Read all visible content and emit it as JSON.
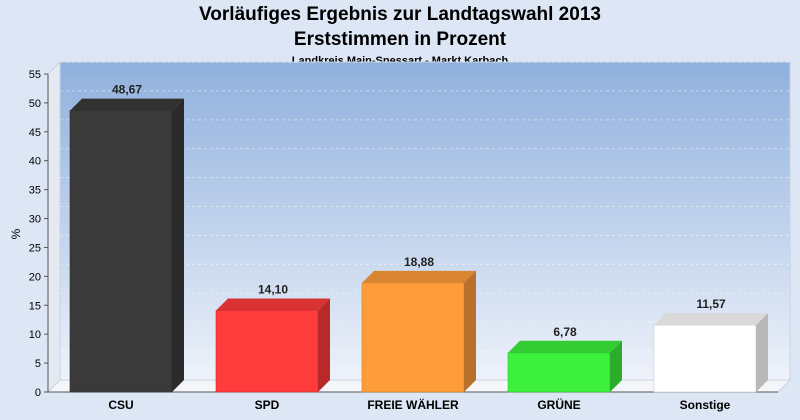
{
  "header": {
    "title": "Vorläufiges Ergebnis zur Landtagswahl 2013",
    "title2": "Erststimmen in Prozent",
    "subtitle": "Landkreis Main-Spessart - Markt Karbach"
  },
  "chart_data": {
    "type": "bar",
    "title": "Vorläufiges Ergebnis zur Landtagswahl 2013",
    "subtitle": "Erststimmen in Prozent",
    "ylabel": "%",
    "ylim": [
      0,
      55
    ],
    "yticks": [
      0,
      5,
      10,
      15,
      20,
      25,
      30,
      35,
      40,
      45,
      50,
      55
    ],
    "grid": true,
    "categories": [
      "CSU",
      "SPD",
      "FREIE WÄHLER",
      "GRÜNE",
      "Sonstige"
    ],
    "values": [
      48.67,
      14.1,
      18.88,
      6.78,
      11.57
    ],
    "value_labels": [
      "48,67",
      "14,10",
      "18,88",
      "6,78",
      "11,57"
    ],
    "colors": [
      "#3a3a3a",
      "#ff3b3b",
      "#ff9c3a",
      "#3cf03c",
      "#ffffff"
    ]
  }
}
